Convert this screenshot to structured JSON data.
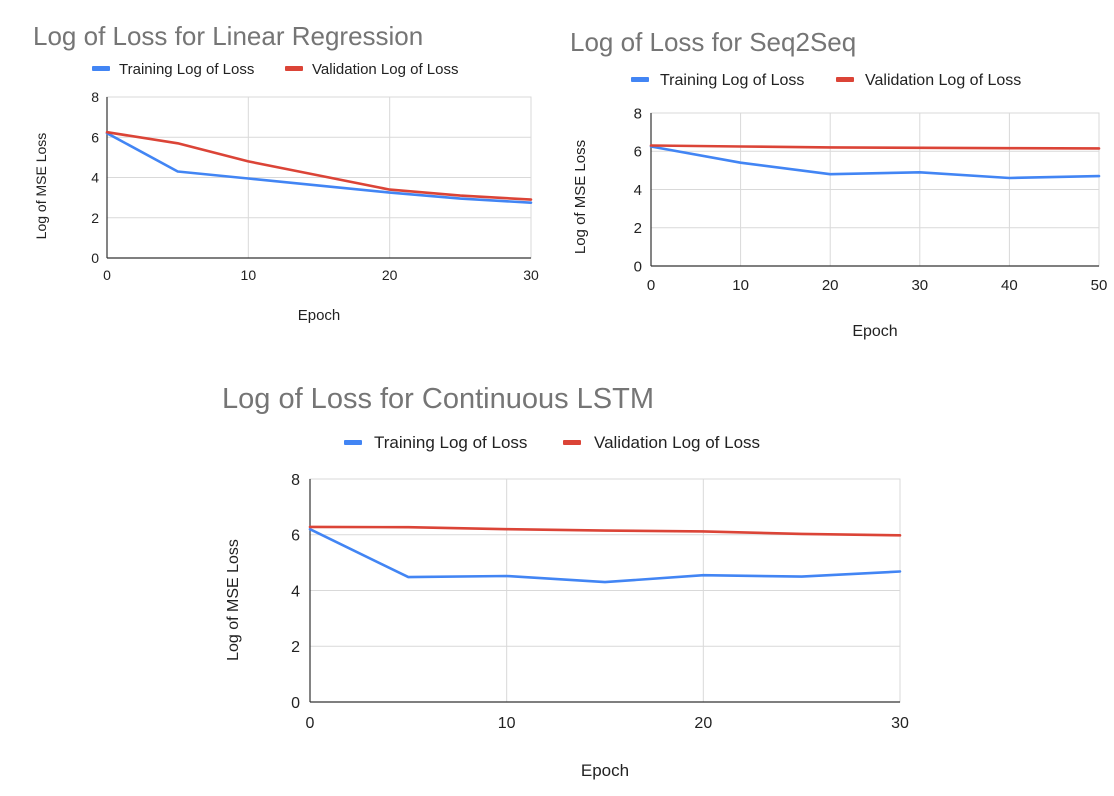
{
  "chart_data": [
    {
      "type": "line",
      "title": "Log of Loss for Linear Regression",
      "xlabel": "Epoch",
      "ylabel": "Log of MSE Loss",
      "xlim": [
        0,
        30
      ],
      "ylim": [
        0,
        8
      ],
      "xticks": [
        0,
        10,
        20,
        30
      ],
      "yticks": [
        0,
        2,
        4,
        6,
        8
      ],
      "grid": true,
      "legend_position": "top",
      "series": [
        {
          "name": "Training Log of Loss",
          "color": "#4285f4",
          "x": [
            0,
            5,
            10,
            15,
            20,
            25,
            30
          ],
          "values": [
            6.2,
            4.3,
            3.95,
            3.6,
            3.25,
            2.95,
            2.75
          ]
        },
        {
          "name": "Validation  Log of Loss",
          "color": "#db4437",
          "x": [
            0,
            5,
            10,
            15,
            20,
            25,
            30
          ],
          "values": [
            6.25,
            5.7,
            4.8,
            4.1,
            3.4,
            3.1,
            2.9
          ]
        }
      ]
    },
    {
      "type": "line",
      "title": "Log of Loss for Seq2Seq",
      "xlabel": "Epoch",
      "ylabel": "Log of MSE Loss",
      "xlim": [
        0,
        50
      ],
      "ylim": [
        0,
        8
      ],
      "xticks": [
        0,
        10,
        20,
        30,
        40,
        50
      ],
      "yticks": [
        0,
        2,
        4,
        6,
        8
      ],
      "grid": true,
      "legend_position": "top",
      "series": [
        {
          "name": "Training Log of Loss",
          "color": "#4285f4",
          "x": [
            0,
            10,
            20,
            30,
            40,
            50
          ],
          "values": [
            6.25,
            5.4,
            4.8,
            4.9,
            4.6,
            4.7
          ]
        },
        {
          "name": "Validation  Log of Loss",
          "color": "#db4437",
          "x": [
            0,
            10,
            20,
            30,
            40,
            50
          ],
          "values": [
            6.3,
            6.25,
            6.2,
            6.18,
            6.16,
            6.15
          ]
        }
      ]
    },
    {
      "type": "line",
      "title": "Log of Loss for Continuous LSTM",
      "xlabel": "Epoch",
      "ylabel": "Log of MSE Loss",
      "xlim": [
        0,
        30
      ],
      "ylim": [
        0,
        8
      ],
      "xticks": [
        0,
        10,
        20,
        30
      ],
      "yticks": [
        0,
        2,
        4,
        6,
        8
      ],
      "grid": true,
      "legend_position": "top",
      "series": [
        {
          "name": "Training Log of Loss",
          "color": "#4285f4",
          "x": [
            0,
            5,
            10,
            15,
            20,
            25,
            30
          ],
          "values": [
            6.2,
            4.48,
            4.52,
            4.3,
            4.55,
            4.5,
            4.68
          ]
        },
        {
          "name": "Validation  Log of Loss",
          "color": "#db4437",
          "x": [
            0,
            5,
            10,
            15,
            20,
            25,
            30
          ],
          "values": [
            6.28,
            6.27,
            6.2,
            6.15,
            6.12,
            6.03,
            5.98
          ]
        }
      ]
    }
  ]
}
